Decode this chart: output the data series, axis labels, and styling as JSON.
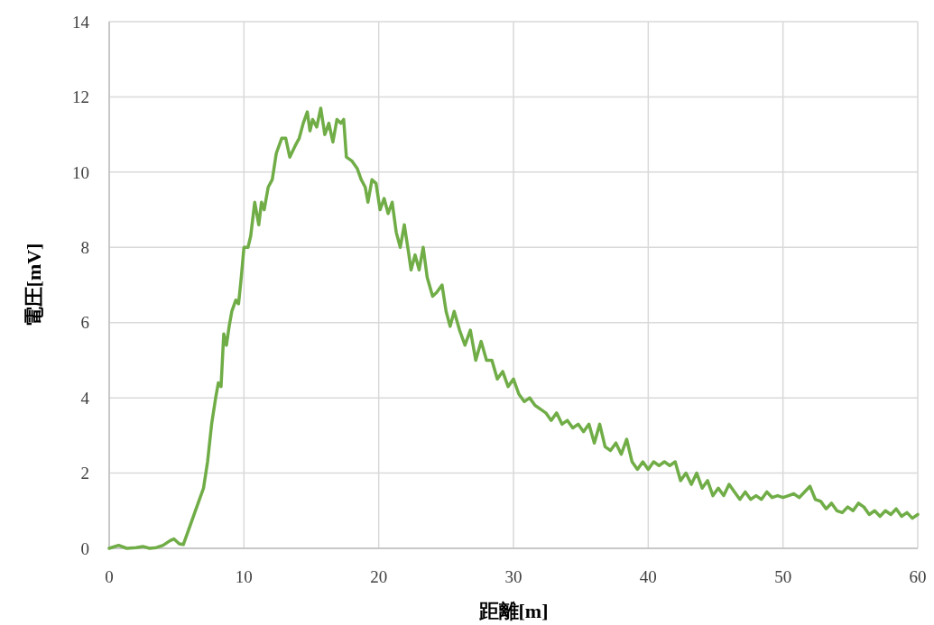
{
  "chart_data": {
    "type": "line",
    "xlabel": "距離[m]",
    "ylabel": "電圧[mV]",
    "xlim": [
      0,
      60
    ],
    "xticks": [
      0,
      10,
      20,
      30,
      40,
      50,
      60
    ],
    "ylim": [
      0,
      14
    ],
    "yticks": [
      0,
      2,
      4,
      6,
      8,
      10,
      12,
      14
    ],
    "grid": true,
    "marker": "none",
    "line_style": "solid",
    "series": [
      {
        "color": "#70ad47",
        "x": [
          0,
          0.7,
          1.3,
          2,
          2.5,
          3,
          3.5,
          4,
          4.5,
          4.8,
          5.2,
          5.5,
          5.8,
          6.2,
          6.6,
          7,
          7.3,
          7.6,
          7.9,
          8.1,
          8.3,
          8.5,
          8.7,
          8.9,
          9.1,
          9.4,
          9.6,
          9.8,
          10,
          10.3,
          10.5,
          10.8,
          11.1,
          11.3,
          11.5,
          11.8,
          12.1,
          12.4,
          12.8,
          13.1,
          13.4,
          13.8,
          14.1,
          14.4,
          14.7,
          14.9,
          15.1,
          15.4,
          15.7,
          16,
          16.3,
          16.6,
          16.9,
          17.2,
          17.4,
          17.6,
          18,
          18.4,
          18.7,
          19,
          19.2,
          19.5,
          19.8,
          20.1,
          20.4,
          20.7,
          21,
          21.3,
          21.6,
          21.9,
          22.2,
          22.4,
          22.7,
          23,
          23.3,
          23.6,
          24,
          24.3,
          24.7,
          25,
          25.3,
          25.6,
          26,
          26.4,
          26.8,
          27.2,
          27.6,
          28,
          28.4,
          28.8,
          29.2,
          29.6,
          30,
          30.4,
          30.8,
          31.2,
          31.6,
          32,
          32.4,
          32.8,
          33.2,
          33.6,
          34,
          34.4,
          34.8,
          35.2,
          35.6,
          36,
          36.4,
          36.8,
          37.2,
          37.6,
          38,
          38.4,
          38.8,
          39.2,
          39.6,
          40,
          40.4,
          40.8,
          41.2,
          41.6,
          42,
          42.4,
          42.8,
          43.2,
          43.6,
          44,
          44.4,
          44.8,
          45.2,
          45.6,
          46,
          46.4,
          46.8,
          47.2,
          47.6,
          48,
          48.4,
          48.8,
          49.2,
          49.6,
          50,
          50.4,
          50.8,
          51.2,
          51.6,
          52,
          52.4,
          52.8,
          53.2,
          53.6,
          54,
          54.4,
          54.8,
          55.2,
          55.6,
          56,
          56.4,
          56.8,
          57.2,
          57.6,
          58,
          58.4,
          58.8,
          59.2,
          59.6,
          60
        ],
        "values": [
          0,
          0.08,
          0,
          0.02,
          0.05,
          0,
          0.02,
          0.08,
          0.2,
          0.25,
          0.12,
          0.1,
          0.4,
          0.8,
          1.2,
          1.6,
          2.3,
          3.3,
          4,
          4.4,
          4.3,
          5.7,
          5.4,
          5.9,
          6.3,
          6.6,
          6.5,
          7.2,
          8,
          8,
          8.3,
          9.2,
          8.6,
          9.2,
          9,
          9.6,
          9.8,
          10.5,
          10.9,
          10.9,
          10.4,
          10.7,
          10.9,
          11.3,
          11.6,
          11.1,
          11.4,
          11.2,
          11.7,
          11,
          11.3,
          10.8,
          11.4,
          11.3,
          11.4,
          10.4,
          10.3,
          10.1,
          9.8,
          9.6,
          9.2,
          9.8,
          9.7,
          9,
          9.3,
          8.9,
          9.2,
          8.4,
          8,
          8.6,
          7.9,
          7.4,
          7.8,
          7.4,
          8,
          7.2,
          6.7,
          6.8,
          7,
          6.3,
          5.9,
          6.3,
          5.8,
          5.4,
          5.8,
          5,
          5.5,
          5,
          5,
          4.5,
          4.7,
          4.3,
          4.5,
          4.1,
          3.9,
          4,
          3.8,
          3.7,
          3.6,
          3.4,
          3.6,
          3.3,
          3.4,
          3.2,
          3.3,
          3.1,
          3.3,
          2.8,
          3.3,
          2.7,
          2.6,
          2.8,
          2.5,
          2.9,
          2.3,
          2.1,
          2.3,
          2.1,
          2.3,
          2.2,
          2.3,
          2.2,
          2.3,
          1.8,
          2,
          1.7,
          2,
          1.6,
          1.8,
          1.4,
          1.6,
          1.4,
          1.7,
          1.5,
          1.3,
          1.5,
          1.3,
          1.4,
          1.3,
          1.5,
          1.35,
          1.4,
          1.35,
          1.4,
          1.45,
          1.35,
          1.5,
          1.65,
          1.3,
          1.25,
          1.05,
          1.2,
          1,
          0.95,
          1.1,
          1,
          1.2,
          1.1,
          0.9,
          1,
          0.85,
          1,
          0.9,
          1.05,
          0.85,
          0.95,
          0.8,
          0.9
        ]
      }
    ]
  }
}
